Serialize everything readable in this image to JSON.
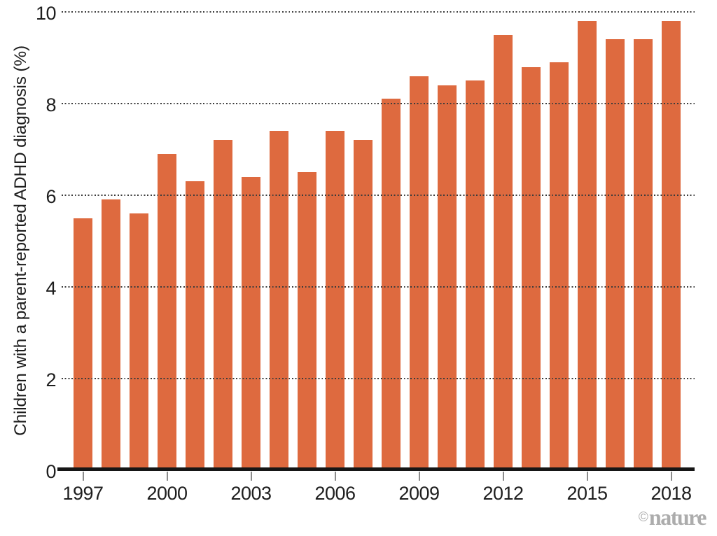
{
  "chart_data": {
    "type": "bar",
    "title": "",
    "xlabel": "",
    "ylabel": "Children with a parent-reported ADHD diagnosis (%)",
    "ylim": [
      0,
      10
    ],
    "ytick_values": [
      0,
      2,
      4,
      6,
      8,
      10
    ],
    "xtick_years": [
      1997,
      2000,
      2003,
      2006,
      2009,
      2012,
      2015,
      2018
    ],
    "grid": "horizontal dotted lines drawn over bars",
    "legend_position": "none",
    "bar_color": "#DE6A3F",
    "axis_color": "#161616",
    "tick_mark_color": "#8c8c8c",
    "years": [
      1997,
      1998,
      1999,
      2000,
      2001,
      2002,
      2003,
      2004,
      2005,
      2006,
      2007,
      2008,
      2009,
      2010,
      2011,
      2012,
      2013,
      2014,
      2015,
      2016,
      2017,
      2018
    ],
    "values": [
      5.5,
      5.9,
      5.6,
      6.9,
      6.3,
      7.2,
      6.4,
      7.4,
      6.5,
      7.4,
      7.2,
      8.1,
      8.6,
      8.4,
      8.5,
      9.5,
      8.8,
      8.9,
      9.8,
      9.4,
      9.4,
      9.8
    ]
  },
  "watermark": {
    "symbol": "©",
    "brand": "nature",
    "color": "#ACACAC"
  }
}
